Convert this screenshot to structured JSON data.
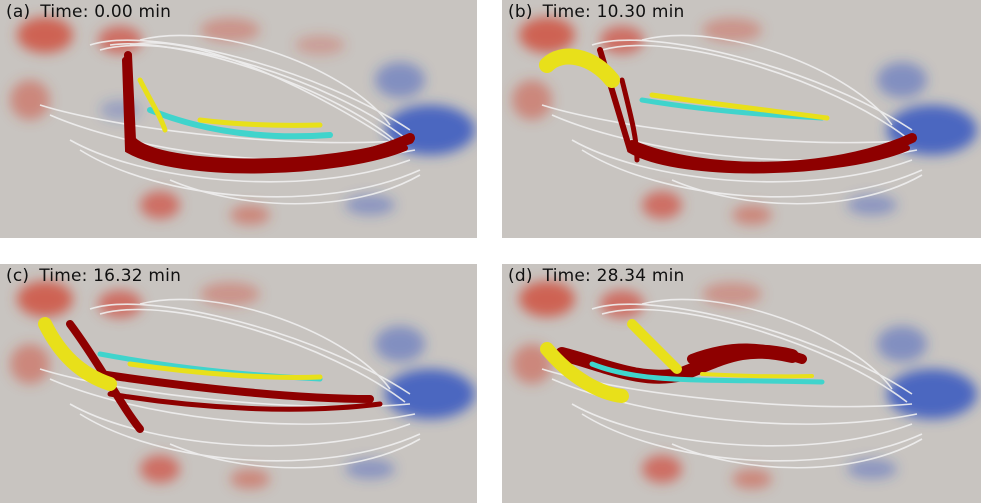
{
  "panels": [
    {
      "tag": "(a)",
      "time": "Time: 0.00 min"
    },
    {
      "tag": "(b)",
      "time": "Time: 10.30 min"
    },
    {
      "tag": "(c)",
      "time": "Time: 16.32 min"
    },
    {
      "tag": "(d)",
      "time": "Time: 28.34 min"
    }
  ],
  "colors": {
    "background": "#c8c4c0",
    "positive_flux": "#d04a3a",
    "negative_flux": "#2c50c0",
    "red_fieldlines": "#8e0000",
    "yellow_fieldlines": "#e8e01a",
    "cyan_fieldlines": "#40d4cc",
    "white_fieldlines": "#f0f0f0"
  }
}
